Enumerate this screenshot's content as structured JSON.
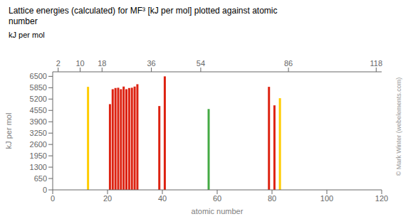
{
  "chart_data": {
    "type": "bar",
    "title": "Lattice energies (calculated) for MF³ [kJ per mol] plotted against atomic\nnumber",
    "xlabel": "atomic number",
    "ylabel": "kJ per mol",
    "x": [
      13,
      21,
      22,
      23,
      24,
      25,
      26,
      27,
      28,
      29,
      30,
      31,
      39,
      41,
      57,
      79,
      81,
      83
    ],
    "values": [
      5900,
      4910,
      5765,
      5833,
      5849,
      5765,
      5916,
      5765,
      5832,
      5849,
      5916,
      6050,
      4800,
      6500,
      4630,
      5900,
      4840,
      5250
    ],
    "colors": [
      "#ffcc00",
      "#dd2211",
      "#dd2211",
      "#dd2211",
      "#dd2211",
      "#dd2211",
      "#dd2211",
      "#dd2211",
      "#dd2211",
      "#dd2211",
      "#dd2211",
      "#dd2211",
      "#dd2211",
      "#dd2211",
      "#44aa44",
      "#dd2211",
      "#dd2211",
      "#ffcc00"
    ],
    "xlim": [
      0,
      120
    ],
    "xticks": [
      0,
      20,
      40,
      60,
      80,
      100,
      120
    ],
    "x2lim": [
      0,
      120
    ],
    "x2ticks": [
      2,
      10,
      18,
      36,
      54,
      86,
      118
    ],
    "ylim": [
      0,
      6760
    ],
    "yticks": [
      0,
      650,
      1300,
      1950,
      2600,
      3250,
      3900,
      4550,
      5200,
      5850,
      6500
    ],
    "grid": false,
    "annotations": [
      "© Mark Winter (webelements.com)"
    ]
  }
}
